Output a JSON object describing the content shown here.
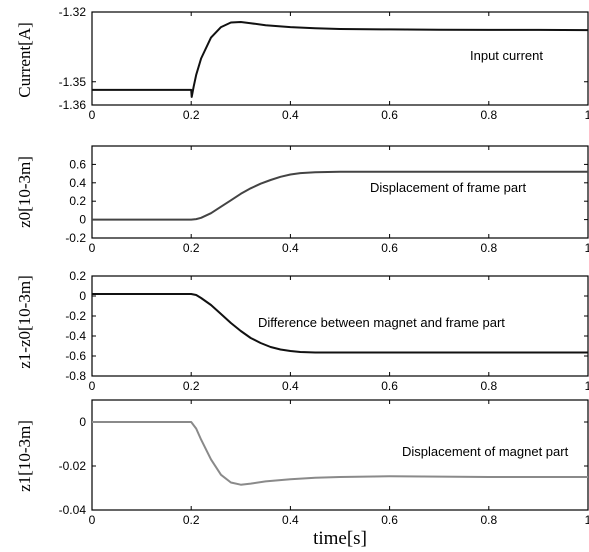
{
  "chart_data": [
    {
      "type": "line",
      "ylabel": "Current[A]",
      "annotation": "Input current",
      "xlim": [
        0,
        1
      ],
      "ylim": [
        -1.36,
        -1.32
      ],
      "xticks": [
        "0",
        "0.2",
        "0.4",
        "0.6",
        "0.8",
        "1"
      ],
      "yticks": [
        "-1.32",
        "-1.35",
        "-1.36"
      ],
      "ytick_values": [
        -1.32,
        -1.35,
        -1.36
      ],
      "color": "#111111",
      "series": [
        {
          "x": [
            0,
            0.05,
            0.1,
            0.15,
            0.2,
            0.201,
            0.205,
            0.21,
            0.22,
            0.24,
            0.26,
            0.28,
            0.3,
            0.32,
            0.35,
            0.4,
            0.45,
            0.5,
            0.6,
            0.7,
            0.8,
            0.9,
            1.0
          ],
          "y": [
            -1.3535,
            -1.3535,
            -1.3535,
            -1.3535,
            -1.3535,
            -1.3565,
            -1.352,
            -1.347,
            -1.34,
            -1.331,
            -1.3265,
            -1.3245,
            -1.3243,
            -1.3248,
            -1.3257,
            -1.3265,
            -1.327,
            -1.3273,
            -1.3275,
            -1.3276,
            -1.3277,
            -1.3277,
            -1.3278
          ]
        }
      ]
    },
    {
      "type": "line",
      "ylabel": "z0[10-3m]",
      "annotation": "Displacement of frame part",
      "xlim": [
        0,
        1
      ],
      "ylim": [
        -0.2,
        0.8
      ],
      "xticks": [
        "0",
        "0.2",
        "0.4",
        "0.6",
        "0.8",
        "1"
      ],
      "yticks": [
        "0.6",
        "0.4",
        "0.2",
        "0",
        "-0.2"
      ],
      "ytick_values": [
        0.6,
        0.4,
        0.2,
        0,
        -0.2
      ],
      "color": "#444444",
      "series": [
        {
          "x": [
            0,
            0.1,
            0.2,
            0.21,
            0.22,
            0.24,
            0.26,
            0.28,
            0.3,
            0.32,
            0.34,
            0.36,
            0.38,
            0.4,
            0.42,
            0.45,
            0.5,
            0.6,
            0.7,
            0.8,
            0.9,
            1.0
          ],
          "y": [
            0,
            0,
            0,
            0.005,
            0.02,
            0.07,
            0.14,
            0.21,
            0.28,
            0.34,
            0.39,
            0.43,
            0.465,
            0.49,
            0.505,
            0.515,
            0.52,
            0.52,
            0.52,
            0.52,
            0.52,
            0.52
          ]
        }
      ]
    },
    {
      "type": "line",
      "ylabel": "z1-z0[10-3m]",
      "annotation": "Difference between magnet and frame part",
      "xlim": [
        0,
        1
      ],
      "ylim": [
        -0.8,
        0.2
      ],
      "xticks": [
        "0",
        "0.2",
        "0.4",
        "0.6",
        "0.8",
        "1"
      ],
      "yticks": [
        "0.2",
        "0",
        "-0.2",
        "-0.4",
        "-0.6",
        "-0.8"
      ],
      "ytick_values": [
        0.2,
        0,
        -0.2,
        -0.4,
        -0.6,
        -0.8
      ],
      "color": "#111111",
      "series": [
        {
          "x": [
            0,
            0.1,
            0.2,
            0.21,
            0.22,
            0.24,
            0.26,
            0.28,
            0.3,
            0.32,
            0.34,
            0.36,
            0.38,
            0.4,
            0.42,
            0.45,
            0.5,
            0.6,
            0.7,
            0.8,
            0.9,
            1.0
          ],
          "y": [
            0.02,
            0.02,
            0.02,
            0.01,
            -0.02,
            -0.09,
            -0.18,
            -0.27,
            -0.35,
            -0.42,
            -0.47,
            -0.51,
            -0.535,
            -0.55,
            -0.56,
            -0.565,
            -0.565,
            -0.565,
            -0.565,
            -0.565,
            -0.565,
            -0.565
          ]
        }
      ]
    },
    {
      "type": "line",
      "ylabel": "z1[10-3m]",
      "annotation": "Displacement of magnet part",
      "xlabel": "time[s]",
      "xlim": [
        0,
        1
      ],
      "ylim": [
        -0.04,
        0.01
      ],
      "xticks": [
        "0",
        "0.2",
        "0.4",
        "0.6",
        "0.8",
        "1"
      ],
      "yticks": [
        "0",
        "-0.02",
        "-0.04"
      ],
      "ytick_values": [
        0,
        -0.02,
        -0.04
      ],
      "color": "#8a8a8a",
      "series": [
        {
          "x": [
            0,
            0.1,
            0.2,
            0.21,
            0.22,
            0.24,
            0.26,
            0.28,
            0.3,
            0.32,
            0.35,
            0.4,
            0.45,
            0.5,
            0.6,
            0.7,
            0.8,
            0.9,
            1.0
          ],
          "y": [
            0,
            0,
            0,
            -0.003,
            -0.008,
            -0.017,
            -0.024,
            -0.0275,
            -0.0285,
            -0.028,
            -0.027,
            -0.026,
            -0.0253,
            -0.025,
            -0.0247,
            -0.0248,
            -0.025,
            -0.025,
            -0.025
          ]
        }
      ]
    }
  ]
}
